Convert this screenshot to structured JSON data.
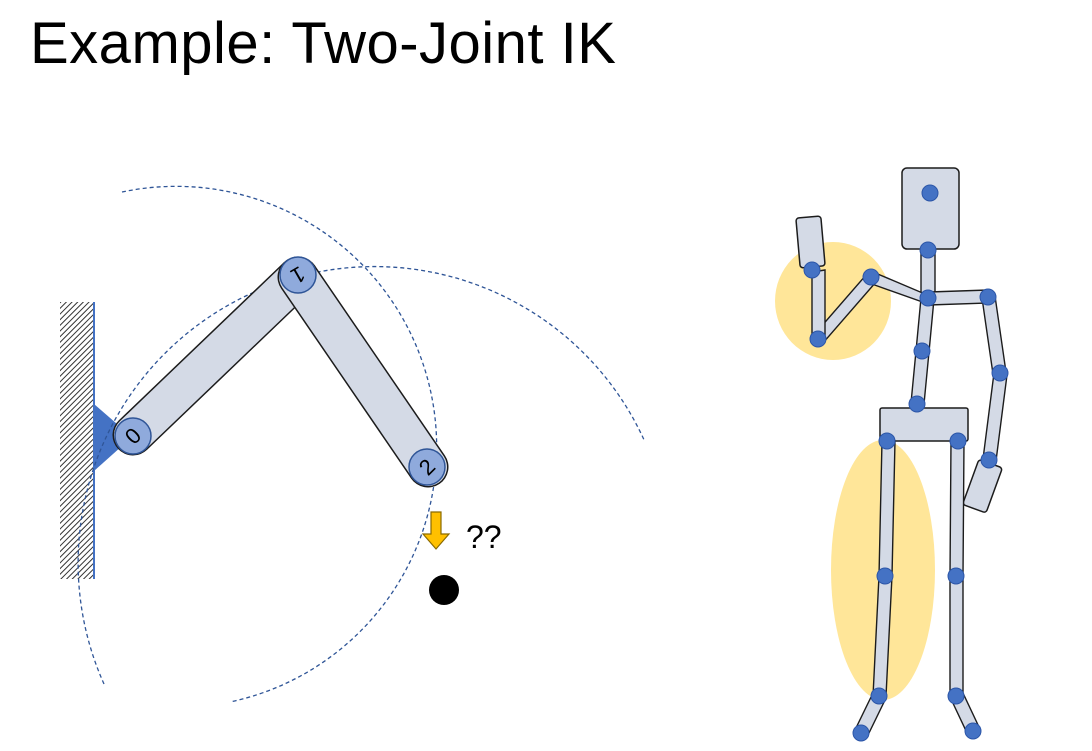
{
  "slide": {
    "title": "Example: Two-Joint IK"
  },
  "arm": {
    "joints": [
      {
        "id": "0",
        "label": "0"
      },
      {
        "id": "1",
        "label": "1"
      },
      {
        "id": "2",
        "label": "2"
      }
    ],
    "annotation": "??"
  },
  "colors": {
    "joint_fill": "#8faadc",
    "link_fill": "#d4dae6",
    "base_fill": "#4472c4",
    "reach_circle": "#2f5597",
    "arrow_fill": "#ffc000",
    "highlight": "#ffe699",
    "target": "#000000"
  },
  "icons": {
    "wall": "hatched-wall",
    "arrow": "down-arrow-icon",
    "target": "target-dot"
  }
}
